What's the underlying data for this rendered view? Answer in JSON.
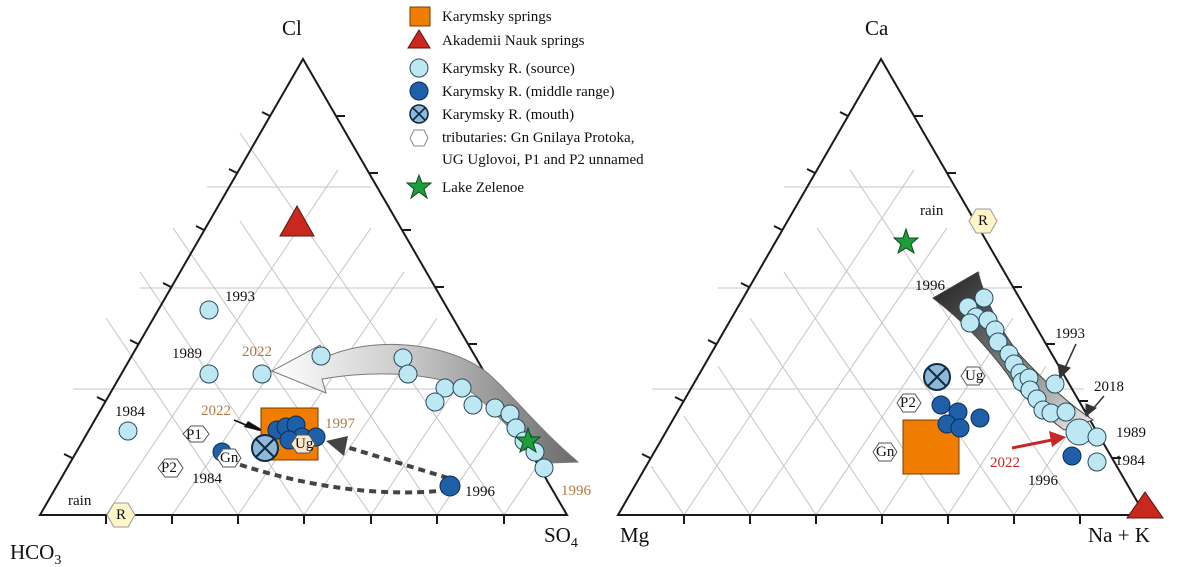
{
  "legend": {
    "items": [
      {
        "label": "Karymsky springs",
        "marker": "orange-square",
        "color": "#f07c00"
      },
      {
        "label": "Akademii Nauk springs",
        "marker": "red-triangle",
        "color": "#c8281e"
      },
      {
        "label": "Karymsky R. (source)",
        "marker": "lightblue-circle",
        "color": "#bde8f3"
      },
      {
        "label": "Karymsky R. (middle range)",
        "marker": "darkblue-circle",
        "color": "#1f5fa8"
      },
      {
        "label": "Karymsky R. (mouth)",
        "marker": "crossed-circle",
        "color": "#8fb8d8"
      },
      {
        "label": "tributaries: Gn Gnilaya Protoka,",
        "marker": "hexagon",
        "color": "#ffffff"
      },
      {
        "label": "UG Uglovoi, P1 and P2 unnamed",
        "marker": "none"
      },
      {
        "label": "Lake Zelenoe",
        "marker": "green-star",
        "color": "#1e9e3a"
      }
    ]
  },
  "chart_data": [
    {
      "type": "scatter",
      "subtype": "ternary",
      "vertices": {
        "top": "Cl",
        "left": "HCO3",
        "left_sub": "3",
        "left_base": "HCO",
        "right": "SO4",
        "right_base": "SO",
        "right_sub": "4"
      },
      "ternary_components": [
        "Cl",
        "HCO3",
        "SO4"
      ],
      "grid": true,
      "groups": {
        "karymsky_springs": [
          {
            "Cl": 0.26,
            "HCO3": 0.45,
            "SO4": 0.29
          }
        ],
        "akademii_nauk_springs": [
          {
            "Cl": 0.63,
            "HCO3": 0.21,
            "SO4": 0.16
          }
        ],
        "river_source": [
          {
            "Cl": 0.45,
            "HCO3": 0.45,
            "SO4": 0.1,
            "label": "1993"
          },
          {
            "Cl": 0.3,
            "HCO3": 0.56,
            "SO4": 0.14,
            "label": "1989"
          },
          {
            "Cl": 0.17,
            "HCO3": 0.74,
            "SO4": 0.09,
            "label": "1984"
          },
          {
            "Cl": 0.3,
            "HCO3": 0.43,
            "SO4": 0.27,
            "label": "2022"
          },
          {
            "Cl": 0.34,
            "HCO3": 0.3,
            "SO4": 0.36
          },
          {
            "Cl": 0.34,
            "HCO3": 0.11,
            "SO4": 0.55
          },
          {
            "Cl": 0.28,
            "HCO3": 0.09,
            "SO4": 0.63
          },
          {
            "Cl": 0.25,
            "HCO3": 0.08,
            "SO4": 0.67
          },
          {
            "Cl": 0.24,
            "HCO3": 0.05,
            "SO4": 0.71
          },
          {
            "Cl": 0.2,
            "HCO3": 0.1,
            "SO4": 0.7
          },
          {
            "Cl": 0.2,
            "HCO3": 0.05,
            "SO4": 0.75
          },
          {
            "Cl": 0.19,
            "HCO3": 0.01,
            "SO4": 0.8
          },
          {
            "Cl": 0.16,
            "HCO3": 0.03,
            "SO4": 0.81
          },
          {
            "Cl": 0.12,
            "HCO3": 0.02,
            "SO4": 0.86
          },
          {
            "Cl": 0.1,
            "HCO3": 0.02,
            "SO4": 0.88
          },
          {
            "Cl": 0.07,
            "HCO3": 0.01,
            "SO4": 0.92
          },
          {
            "Cl": 0.05,
            "HCO3": 0.01,
            "SO4": 0.94
          }
        ],
        "river_middle": [
          {
            "Cl": 0.21,
            "HCO3": 0.47,
            "SO4": 0.32
          },
          {
            "Cl": 0.22,
            "HCO3": 0.45,
            "SO4": 0.33
          },
          {
            "Cl": 0.2,
            "HCO3": 0.48,
            "SO4": 0.32
          },
          {
            "Cl": 0.2,
            "HCO3": 0.44,
            "SO4": 0.36
          },
          {
            "Cl": 0.21,
            "HCO3": 0.43,
            "SO4": 0.36
          },
          {
            "Cl": 0.2,
            "HCO3": 0.41,
            "SO4": 0.39
          },
          {
            "Cl": 0.13,
            "HCO3": 0.57,
            "SO4": 0.3,
            "label": "1984"
          },
          {
            "Cl": 0.06,
            "HCO3": 0.18,
            "SO4": 0.76,
            "label": "1996"
          }
        ],
        "river_mouth": [
          {
            "Cl": 0.17,
            "HCO3": 0.5,
            "SO4": 0.33,
            "label": "2022"
          }
        ],
        "tributaries": [
          {
            "Cl": 0.17,
            "HCO3": 0.62,
            "SO4": 0.21,
            "label": "P1"
          },
          {
            "Cl": 0.1,
            "HCO3": 0.71,
            "SO4": 0.19,
            "label": "P2"
          },
          {
            "Cl": 0.12,
            "HCO3": 0.57,
            "SO4": 0.31,
            "label": "Gn"
          },
          {
            "Cl": 0.17,
            "HCO3": 0.42,
            "SO4": 0.41,
            "label": "Ug"
          }
        ],
        "lake_zelenoe": [
          {
            "Cl": 0.14,
            "HCO3": 0.02,
            "SO4": 0.84
          }
        ],
        "rain": [
          {
            "Cl": 0.0,
            "HCO3": 0.7,
            "SO4": 0.3,
            "label": "R"
          }
        ]
      },
      "annotations": [
        "rain",
        "1993",
        "1989",
        "1984",
        "2022",
        "1997",
        "1996",
        "1984",
        "1996",
        "2022"
      ]
    },
    {
      "type": "scatter",
      "subtype": "ternary",
      "vertices": {
        "top": "Ca",
        "left": "Mg",
        "right": "Na + K"
      },
      "ternary_components": [
        "Ca",
        "Mg",
        "Na+K"
      ],
      "grid": true,
      "groups": {
        "karymsky_springs": [
          {
            "Ca": 0.16,
            "Mg": 0.45,
            "NaK": 0.39
          }
        ],
        "akademii_nauk_springs": [
          {
            "Ca": 0.0,
            "Mg": 0.0,
            "NaK": 1.0
          }
        ],
        "river_source": [
          {
            "Ca": 0.51,
            "Mg": 0.08,
            "NaK": 0.41
          },
          {
            "Ca": 0.49,
            "Mg": 0.1,
            "NaK": 0.41
          },
          {
            "Ca": 0.48,
            "Mg": 0.08,
            "NaK": 0.44
          },
          {
            "Ca": 0.47,
            "Mg": 0.09,
            "NaK": 0.44
          },
          {
            "Ca": 0.45,
            "Mg": 0.09,
            "NaK": 0.46
          },
          {
            "Ca": 0.43,
            "Mg": 0.08,
            "NaK": 0.49
          },
          {
            "Ca": 0.41,
            "Mg": 0.07,
            "NaK": 0.52
          },
          {
            "Ca": 0.38,
            "Mg": 0.07,
            "NaK": 0.55
          },
          {
            "Ca": 0.35,
            "Mg": 0.07,
            "NaK": 0.58
          },
          {
            "Ca": 0.33,
            "Mg": 0.07,
            "NaK": 0.6
          },
          {
            "Ca": 0.31,
            "Mg": 0.08,
            "NaK": 0.61
          },
          {
            "Ca": 0.29,
            "Mg": 0.09,
            "NaK": 0.62
          },
          {
            "Ca": 0.28,
            "Mg": 0.08,
            "NaK": 0.64
          },
          {
            "Ca": 0.26,
            "Mg": 0.1,
            "NaK": 0.64
          },
          {
            "Ca": 0.25,
            "Mg": 0.08,
            "NaK": 0.67
          },
          {
            "Ca": 0.22,
            "Mg": 0.08,
            "NaK": 0.7
          },
          {
            "Ca": 0.28,
            "Mg": 0.01,
            "NaK": 0.71
          },
          {
            "Ca": 0.22,
            "Mg": 0.04,
            "NaK": 0.74
          },
          {
            "Ca": 0.17,
            "Mg": 0.04,
            "NaK": 0.79
          },
          {
            "Ca": 0.16,
            "Mg": 0.02,
            "NaK": 0.82
          },
          {
            "Ca": 0.11,
            "Mg": 0.06,
            "NaK": 0.83
          }
        ],
        "river_middle": [
          {
            "Ca": 0.21,
            "Mg": 0.35,
            "NaK": 0.44
          },
          {
            "Ca": 0.19,
            "Mg": 0.34,
            "NaK": 0.47
          },
          {
            "Ca": 0.17,
            "Mg": 0.33,
            "NaK": 0.5
          },
          {
            "Ca": 0.18,
            "Mg": 0.31,
            "NaK": 0.51
          },
          {
            "Ca": 0.16,
            "Mg": 0.32,
            "NaK": 0.52
          },
          {
            "Ca": 0.11,
            "Mg": 0.1,
            "NaK": 0.79
          }
        ],
        "river_mouth": [
          {
            "Ca": 0.26,
            "Mg": 0.39,
            "NaK": 0.35
          }
        ],
        "tributaries": [
          {
            "Ca": 0.21,
            "Mg": 0.42,
            "NaK": 0.37,
            "label": "P2"
          },
          {
            "Ca": 0.12,
            "Mg": 0.44,
            "NaK": 0.44,
            "label": "Gn"
          },
          {
            "Ca": 0.26,
            "Mg": 0.34,
            "NaK": 0.4,
            "label": "Ug"
          }
        ],
        "lake_zelenoe": [
          {
            "Ca": 0.52,
            "Mg": 0.19,
            "NaK": 0.29
          }
        ],
        "rain": [
          {
            "Ca": 0.56,
            "Mg": 0.09,
            "NaK": 0.35,
            "label": "R"
          }
        ]
      },
      "annotations": [
        "rain",
        "1996",
        "1993",
        "2018",
        "1989",
        "1984",
        "2022",
        "1996"
      ]
    }
  ]
}
